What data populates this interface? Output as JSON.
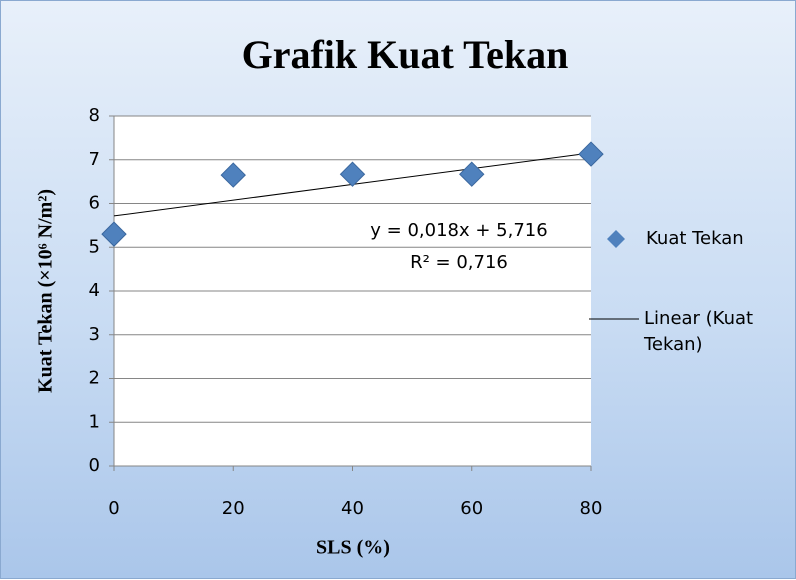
{
  "chart_data": {
    "type": "scatter",
    "title": "Grafik Kuat Tekan",
    "x_label": "SLS (%)",
    "y_label": "Kuat Tekan (×10⁶ N/m²)",
    "series": [
      {
        "name": "Kuat Tekan",
        "color": "#4f81bd",
        "x": [
          0,
          20,
          40,
          60,
          80
        ],
        "values": [
          5.3,
          6.65,
          6.67,
          6.67,
          7.13
        ]
      }
    ],
    "trendline": {
      "name": "Linear (Kuat Tekan)",
      "color": "#000000",
      "slope": 0.018,
      "intercept": 5.716,
      "equation": "y = 0,018x + 5,716",
      "r2_label": "R² = 0,716"
    },
    "xlim": [
      0,
      80
    ],
    "xticks": [
      0,
      20,
      40,
      60,
      80
    ],
    "ylim": [
      0,
      8
    ],
    "yticks": [
      0,
      1,
      2,
      3,
      4,
      5,
      6,
      7,
      8
    ],
    "grid": true
  }
}
